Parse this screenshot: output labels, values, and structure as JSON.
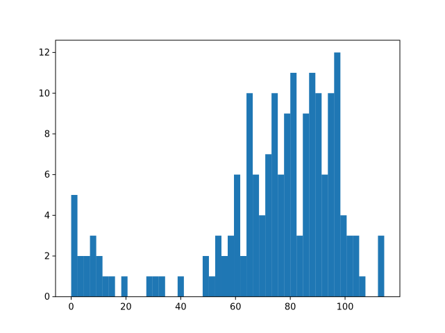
{
  "chart_data": {
    "type": "histogram",
    "color": "#1f77b4",
    "bins": [
      0,
      2.286,
      4.572,
      6.858,
      9.144,
      11.43,
      13.716,
      16.002,
      18.288,
      20.574,
      22.86,
      25.146,
      27.432,
      29.718,
      32.004,
      34.29,
      36.576,
      38.862,
      41.148,
      43.434,
      45.72,
      48.006,
      50.292,
      52.578,
      54.864,
      57.15,
      59.436,
      61.722,
      64.008,
      66.294,
      68.58,
      70.866,
      73.152,
      75.438,
      77.724,
      80.01,
      82.296,
      84.582,
      86.868,
      89.154,
      91.44,
      93.726,
      96.012,
      98.298,
      100.584,
      102.87,
      105.156,
      107.442,
      109.728,
      112.014,
      114.3
    ],
    "values": [
      5,
      2,
      2,
      3,
      2,
      1,
      1,
      0,
      1,
      0,
      0,
      0,
      1,
      1,
      1,
      0,
      0,
      1,
      0,
      0,
      0,
      2,
      1,
      3,
      2,
      3,
      6,
      2,
      10,
      6,
      4,
      7,
      10,
      6,
      9,
      11,
      3,
      9,
      11,
      10,
      6,
      10,
      12,
      4,
      3,
      3,
      1,
      0,
      0,
      3
    ],
    "xlim": [
      -5.715,
      120.015
    ],
    "ylim": [
      0,
      12.6
    ],
    "xticks": [
      0,
      20,
      40,
      60,
      80,
      100
    ],
    "yticks": [
      0,
      2,
      4,
      6,
      8,
      10,
      12
    ]
  }
}
